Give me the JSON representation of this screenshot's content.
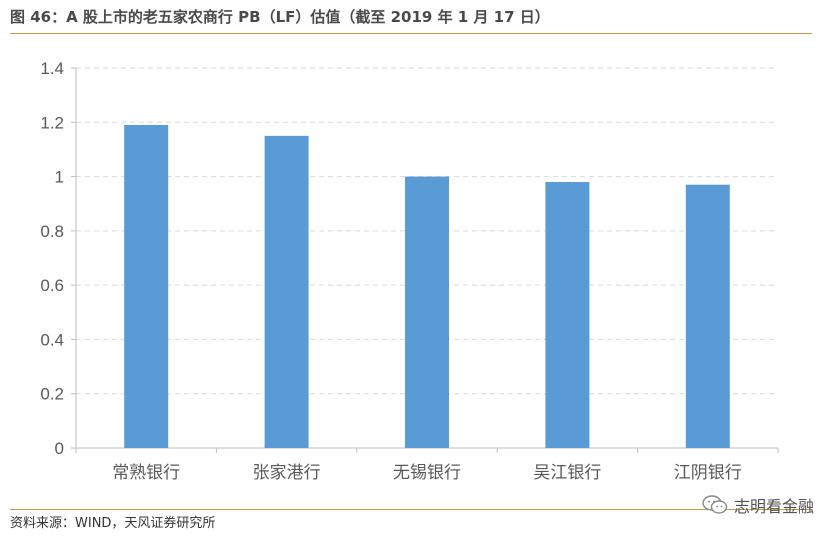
{
  "figure": {
    "title": "图 46：A 股上市的老五家农商行 PB（LF）估值（截至 2019 年 1 月 17 日）",
    "source": "资料来源：WIND，天风证券研究所",
    "watermark": "志明看金融"
  },
  "chart_data": {
    "type": "bar",
    "title": "",
    "xlabel": "",
    "ylabel": "",
    "categories": [
      "常熟银行",
      "张家港行",
      "无锡银行",
      "吴江银行",
      "江阴银行"
    ],
    "values": [
      1.19,
      1.15,
      1.0,
      0.98,
      0.97
    ],
    "ylim": [
      0,
      1.4
    ],
    "yticks": [
      0,
      0.2,
      0.4,
      0.6,
      0.8,
      1,
      1.2,
      1.4
    ],
    "ytick_labels": [
      "0",
      "0.2",
      "0.4",
      "0.6",
      "0.8",
      "1",
      "1.2",
      "1.4"
    ],
    "grid": true,
    "bar_color": "#5b9bd5",
    "grid_color": "#d9d9d9",
    "axis_color": "#bfbfbf"
  }
}
